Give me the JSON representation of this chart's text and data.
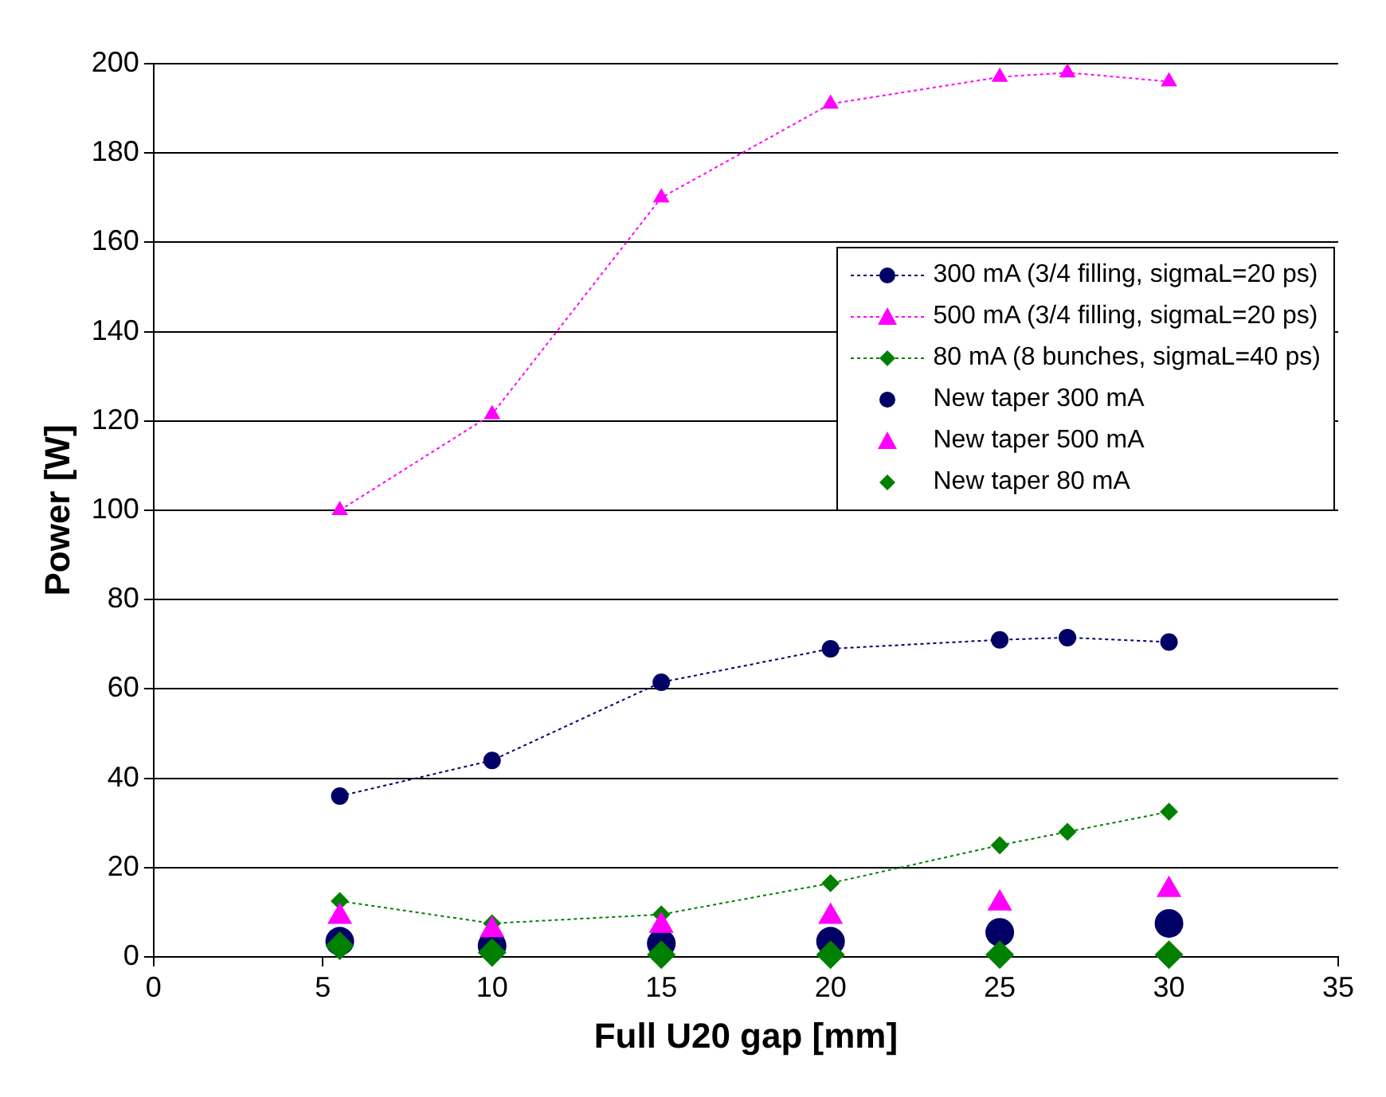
{
  "chart_data": {
    "type": "line",
    "xlabel": "Full U20 gap [mm]",
    "ylabel": "Power [W]",
    "xlim": [
      0,
      35
    ],
    "xticks": [
      0,
      5,
      10,
      15,
      20,
      25,
      30,
      35
    ],
    "ylim": [
      0,
      200
    ],
    "yticks": [
      0,
      20,
      40,
      60,
      80,
      100,
      120,
      140,
      160,
      180,
      200
    ],
    "grid": "y",
    "legend": "right",
    "line_style": "dotted",
    "series": [
      {
        "name": "300 mA (3/4 filling, sigmaL=20 ps)",
        "type": "line",
        "marker": "circle",
        "color": "#000066",
        "x": [
          5.5,
          10,
          15,
          20,
          25,
          27,
          30
        ],
        "values": [
          36,
          44,
          61.5,
          69,
          71,
          71.5,
          70.5
        ]
      },
      {
        "name": "500 mA (3/4 filling, sigmaL=20 ps)",
        "type": "line",
        "marker": "triangle",
        "color": "#ff00ff",
        "x": [
          5.5,
          10,
          15,
          20,
          25,
          27,
          30
        ],
        "values": [
          100,
          121.5,
          170,
          191,
          197,
          198,
          196
        ]
      },
      {
        "name": "80 mA (8 bunches, sigmaL=40 ps)",
        "type": "line",
        "marker": "diamond",
        "color": "#008000",
        "x": [
          5.5,
          10,
          15,
          20,
          25,
          27,
          30
        ],
        "values": [
          12.5,
          7.5,
          9.5,
          16.5,
          25,
          28,
          32.5
        ]
      },
      {
        "name": "New taper 300 mA",
        "type": "scatter",
        "marker": "circle",
        "color": "#000066",
        "x": [
          5.5,
          10,
          15,
          20,
          25,
          30
        ],
        "values": [
          3.5,
          2.5,
          3,
          3.5,
          5.5,
          7.5
        ]
      },
      {
        "name": "New taper 500 mA",
        "type": "scatter",
        "marker": "triangle",
        "color": "#ff00ff",
        "x": [
          5.5,
          10,
          15,
          20,
          25,
          30
        ],
        "values": [
          9,
          6,
          7,
          9,
          12,
          15
        ]
      },
      {
        "name": "New taper 80 mA",
        "type": "scatter",
        "marker": "diamond",
        "color": "#008000",
        "x": [
          5.5,
          10,
          15,
          20,
          25,
          30
        ],
        "values": [
          2.5,
          1,
          0.5,
          0.5,
          0.5,
          0.5
        ]
      }
    ]
  }
}
